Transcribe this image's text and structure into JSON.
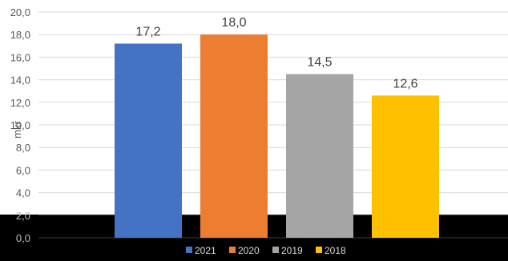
{
  "chart_data": {
    "type": "bar",
    "title": "",
    "xlabel": "",
    "ylabel": "mkr",
    "ylim": [
      0,
      20
    ],
    "y_ticks": [
      "0,0",
      "2,0",
      "4,0",
      "6,0",
      "8,0",
      "10,0",
      "12,0",
      "14,0",
      "16,0",
      "18,0",
      "20,0"
    ],
    "grid": true,
    "legend_position": "bottom",
    "series": [
      {
        "name": "2021",
        "value": 17.2,
        "label": "17,2",
        "color": "#4472C4"
      },
      {
        "name": "2020",
        "value": 18.0,
        "label": "18,0",
        "color": "#ED7D31"
      },
      {
        "name": "2019",
        "value": 14.5,
        "label": "14,5",
        "color": "#A5A5A5"
      },
      {
        "name": "2018",
        "value": 12.6,
        "label": "12,6",
        "color": "#FFC000"
      }
    ],
    "background_band_color": "#000000"
  }
}
